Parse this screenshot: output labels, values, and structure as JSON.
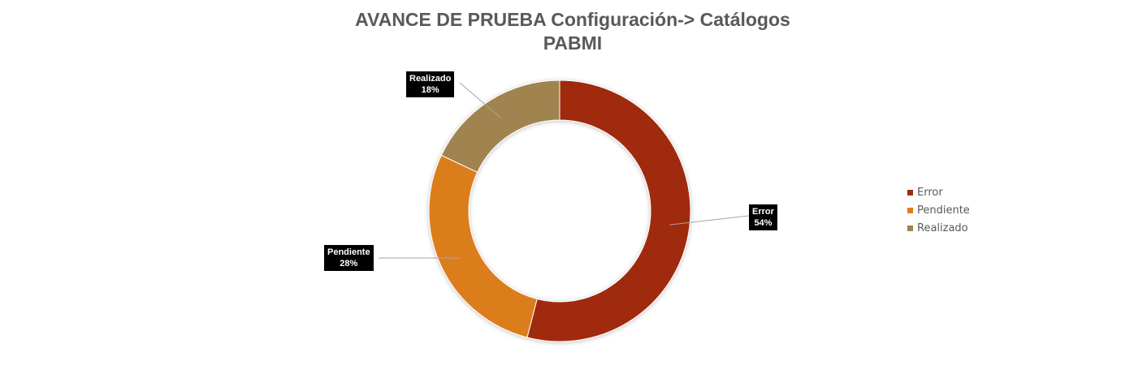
{
  "chart_data": {
    "type": "pie",
    "variant": "doughnut",
    "title_lines": [
      "AVANCE DE PRUEBA Configuración-> Catálogos",
      "PABMI"
    ],
    "categories": [
      "Error",
      "Pendiente",
      "Realizado"
    ],
    "values": [
      54,
      28,
      18
    ],
    "labels": [
      {
        "name": "Error",
        "percent": "54%"
      },
      {
        "name": "Pendiente",
        "percent": "28%"
      },
      {
        "name": "Realizado",
        "percent": "18%"
      }
    ],
    "colors": [
      "#A02B0E",
      "#DC7D1A",
      "#A0834F"
    ],
    "legend": {
      "position": "right",
      "items": [
        "Error",
        "Pendiente",
        "Realizado"
      ]
    }
  }
}
